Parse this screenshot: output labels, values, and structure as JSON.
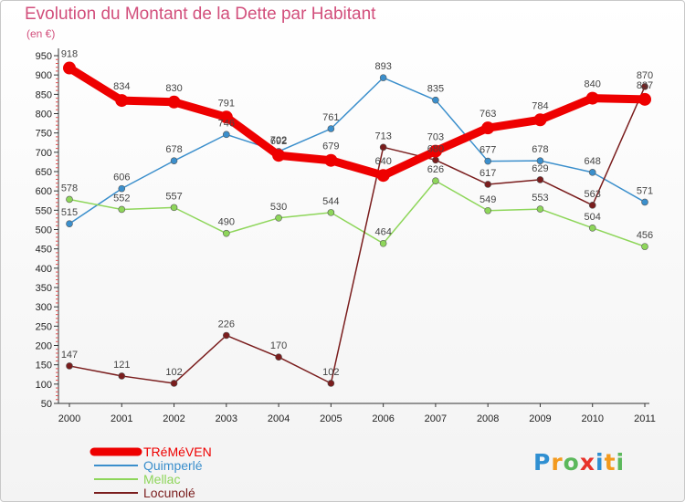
{
  "chart_data": {
    "type": "line",
    "title": "Evolution du Montant de la Dette par Habitant",
    "unit_label": "(en €)",
    "x": [
      "2000",
      "2001",
      "2002",
      "2003",
      "2004",
      "2005",
      "2006",
      "2007",
      "2008",
      "2009",
      "2010",
      "2011"
    ],
    "yticks": [
      50,
      100,
      150,
      200,
      250,
      300,
      350,
      400,
      450,
      500,
      550,
      600,
      650,
      700,
      750,
      800,
      850,
      900,
      950
    ],
    "ylim": [
      50,
      950
    ],
    "grid": false,
    "legend_position": "bottom-left",
    "series": [
      {
        "name": "TRéMéVEN",
        "color": "#ee0000",
        "values": [
          918,
          834,
          830,
          791,
          692,
          679,
          640,
          703,
          763,
          784,
          840,
          837
        ],
        "labels": [
          "918",
          "834",
          "830",
          "791",
          "692",
          "679",
          "640",
          "703",
          "763",
          "784",
          "840",
          "837"
        ]
      },
      {
        "name": "Quimperlé",
        "color": "#3b8fcc",
        "values": [
          515,
          606,
          678,
          746,
          702,
          761,
          893,
          835,
          677,
          678,
          648,
          571
        ],
        "labels": [
          "515",
          "606",
          "678",
          "746",
          "702",
          "761",
          "893",
          "835",
          "677",
          "678",
          "648",
          "571"
        ]
      },
      {
        "name": "Mellac",
        "color": "#8ed65a",
        "values": [
          578,
          552,
          557,
          490,
          530,
          544,
          464,
          626,
          549,
          553,
          504,
          456
        ],
        "labels": [
          "578",
          "552",
          "557",
          "490",
          "530",
          "544",
          "464",
          "626",
          "549",
          "553",
          "504",
          "456"
        ]
      },
      {
        "name": "Locunolé",
        "color": "#7a1d1d",
        "values": [
          147,
          121,
          102,
          226,
          170,
          102,
          713,
          680,
          617,
          629,
          563,
          870
        ],
        "labels": [
          "147",
          "121",
          "102",
          "226",
          "170",
          "102",
          "713",
          "680",
          "617",
          "629",
          "563",
          "870"
        ]
      }
    ]
  },
  "logo": {
    "letters": [
      "P",
      "r",
      "o",
      "x",
      "i",
      "t",
      "i"
    ],
    "colors": [
      "#2f8fd1",
      "#f39a1e",
      "#5cb85c",
      "#e8322a",
      "#2f8fd1",
      "#f39a1e",
      "#5cb85c"
    ]
  }
}
